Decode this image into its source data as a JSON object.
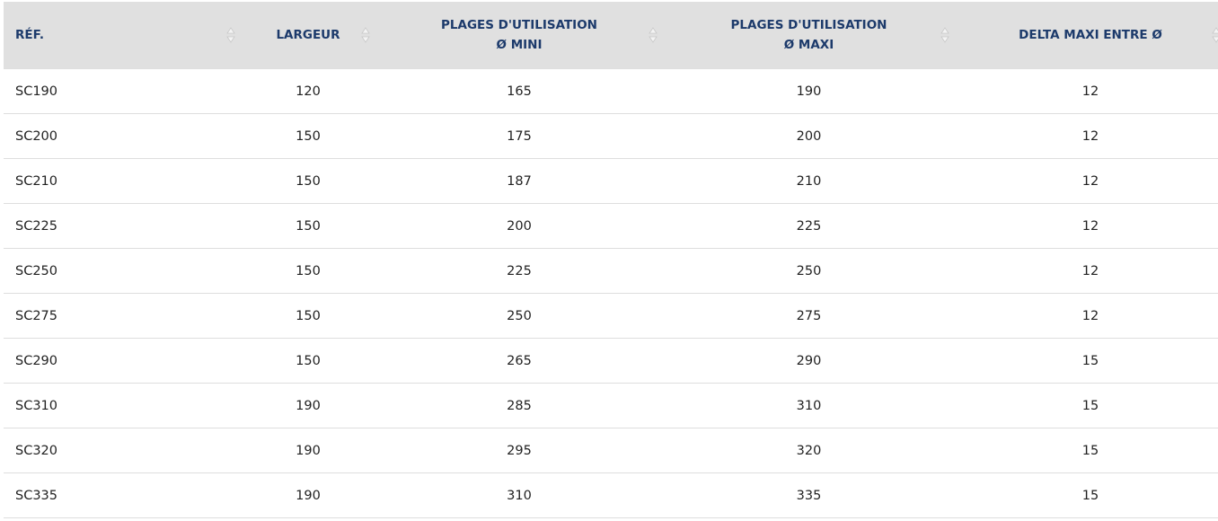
{
  "table": {
    "headers": [
      [
        "RÉF."
      ],
      [
        "LARGEUR"
      ],
      [
        "PLAGES D'UTILISATION",
        "Ø MINI"
      ],
      [
        "PLAGES D'UTILISATION",
        "Ø MAXI"
      ],
      [
        "DELTA MAXI ENTRE Ø"
      ]
    ],
    "rows": [
      [
        "SC190",
        120,
        165,
        190,
        12
      ],
      [
        "SC200",
        150,
        175,
        200,
        12
      ],
      [
        "SC210",
        150,
        187,
        210,
        12
      ],
      [
        "SC225",
        150,
        200,
        225,
        12
      ],
      [
        "SC250",
        150,
        225,
        250,
        12
      ],
      [
        "SC275",
        150,
        250,
        275,
        12
      ],
      [
        "SC290",
        150,
        265,
        290,
        15
      ],
      [
        "SC310",
        190,
        285,
        310,
        15
      ],
      [
        "SC320",
        190,
        295,
        320,
        15
      ],
      [
        "SC335",
        190,
        310,
        335,
        15
      ]
    ]
  }
}
